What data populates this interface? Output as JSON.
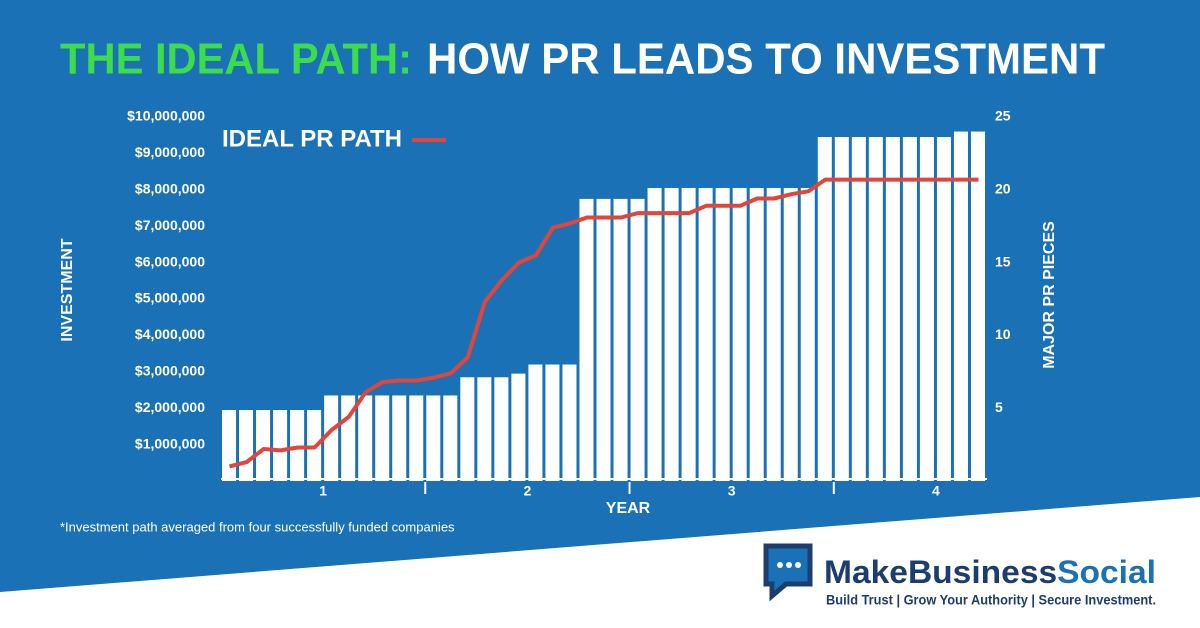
{
  "chart_data": {
    "type": "bar",
    "title": {
      "highlight": "THE IDEAL PATH:",
      "rest": "HOW PR LEADS TO INVESTMENT"
    },
    "categories": [
      null,
      null,
      null,
      null,
      null,
      null,
      null,
      null,
      null,
      null,
      null,
      null,
      null,
      null,
      null,
      null,
      null,
      null,
      null,
      null,
      null,
      null,
      null,
      null,
      null,
      null,
      null,
      null,
      null,
      null,
      null,
      null,
      null,
      null,
      null,
      null,
      null,
      null,
      null,
      null,
      null,
      null,
      null,
      null,
      null
    ],
    "x_group_labels": [
      "1",
      "2",
      "3",
      "4"
    ],
    "xlabel": "YEAR",
    "ylabel": "INVESTMENT",
    "y2label": "MAJOR PR PIECES",
    "ylim": [
      0,
      10000000
    ],
    "yticks": [
      {
        "value": 1000000,
        "label": "$1,000,000"
      },
      {
        "value": 2000000,
        "label": "$2,000,000"
      },
      {
        "value": 3000000,
        "label": "$3,000,000"
      },
      {
        "value": 4000000,
        "label": "$4,000,000"
      },
      {
        "value": 5000000,
        "label": "$5,000,000"
      },
      {
        "value": 6000000,
        "label": "$6,000,000"
      },
      {
        "value": 7000000,
        "label": "$7,000,000"
      },
      {
        "value": 8000000,
        "label": "$8,000,000"
      },
      {
        "value": 9000000,
        "label": "$9,000,000"
      },
      {
        "value": 10000000,
        "label": "$10,000,000"
      }
    ],
    "y2lim": [
      0,
      25
    ],
    "y2ticks": [
      5,
      10,
      15,
      20,
      25
    ],
    "legend": "top-left",
    "series": [
      {
        "type": "bar",
        "color": "#ffffff",
        "values": [
          1950000,
          1950000,
          1950000,
          1950000,
          1950000,
          1950000,
          2350000,
          2350000,
          2350000,
          2350000,
          2350000,
          2350000,
          2350000,
          2350000,
          2850000,
          2850000,
          2850000,
          2950000,
          3200000,
          3200000,
          3200000,
          7750000,
          7750000,
          7750000,
          7750000,
          8050000,
          8050000,
          8050000,
          8050000,
          8050000,
          8050000,
          8050000,
          8050000,
          8050000,
          8050000,
          9450000,
          9450000,
          9450000,
          9450000,
          9450000,
          9450000,
          9450000,
          9450000,
          9600000,
          9600000
        ]
      },
      {
        "type": "line",
        "name": "IDEAL PR PATH",
        "color": "#e0463c",
        "axis": "y2",
        "values": [
          1.0,
          1.3,
          2.2,
          2.1,
          2.3,
          2.3,
          3.5,
          4.4,
          6.1,
          6.8,
          6.9,
          6.9,
          7.1,
          7.4,
          8.5,
          12.3,
          13.8,
          15.0,
          15.5,
          17.4,
          17.7,
          18.1,
          18.1,
          18.1,
          18.4,
          18.4,
          18.4,
          18.4,
          18.9,
          18.9,
          18.9,
          19.4,
          19.4,
          19.7,
          19.9,
          20.7,
          20.7,
          20.7,
          20.7,
          20.7,
          20.7,
          20.7,
          20.7,
          20.7,
          20.7
        ]
      }
    ]
  },
  "footnote": "*Investment path averaged from four successfully funded companies",
  "brand": {
    "name_parts": [
      "MakeBusiness",
      "Social"
    ],
    "tagline": "Build Trust | Grow Your Authority | Secure Investment."
  }
}
